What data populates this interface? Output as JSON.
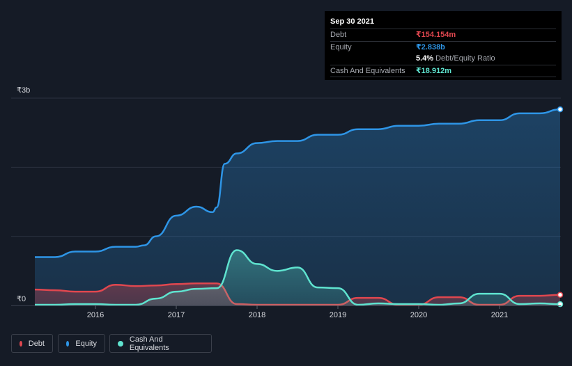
{
  "tooltip": {
    "date": "Sep 30 2021",
    "debt_label": "Debt",
    "debt_value": "₹154.154m",
    "equity_label": "Equity",
    "equity_value": "₹2.838b",
    "ratio_value": "5.4%",
    "ratio_label": "Debt/Equity Ratio",
    "cash_label": "Cash And Equivalents",
    "cash_value": "₹18.912m"
  },
  "legend": [
    {
      "label": "Debt",
      "color": "#e0474f"
    },
    {
      "label": "Equity",
      "color": "#2e95e6"
    },
    {
      "label": "Cash And Equivalents",
      "color": "#5fe3cf"
    }
  ],
  "colors": {
    "debt": "#e0474f",
    "equity": "#2e95e6",
    "cash": "#5fe3cf",
    "background": "#151b26",
    "grid": "#2b3240"
  },
  "chart_data": {
    "type": "area",
    "unit": "₹ billions",
    "ylim": [
      0,
      3
    ],
    "y_tick_labels": [
      {
        "value": 3,
        "label": "₹3b"
      },
      {
        "value": 0,
        "label": "₹0"
      }
    ],
    "x_ticks": [
      {
        "label": "2016",
        "x": 2016.0
      },
      {
        "label": "2017",
        "x": 2017.0
      },
      {
        "label": "2018",
        "x": 2018.0
      },
      {
        "label": "2019",
        "x": 2019.0
      },
      {
        "label": "2020",
        "x": 2020.0
      },
      {
        "label": "2021",
        "x": 2021.0
      }
    ],
    "xlim": [
      2014.9,
      2021.75
    ],
    "series": [
      {
        "name": "Equity",
        "key": "equity",
        "points": [
          [
            2015.25,
            0.7
          ],
          [
            2015.5,
            0.7
          ],
          [
            2015.75,
            0.78
          ],
          [
            2016.0,
            0.78
          ],
          [
            2016.25,
            0.85
          ],
          [
            2016.5,
            0.85
          ],
          [
            2016.6,
            0.87
          ],
          [
            2016.75,
            1.0
          ],
          [
            2017.0,
            1.3
          ],
          [
            2017.25,
            1.43
          ],
          [
            2017.45,
            1.35
          ],
          [
            2017.5,
            1.42
          ],
          [
            2017.6,
            2.05
          ],
          [
            2017.75,
            2.2
          ],
          [
            2018.0,
            2.35
          ],
          [
            2018.25,
            2.38
          ],
          [
            2018.5,
            2.38
          ],
          [
            2018.75,
            2.47
          ],
          [
            2019.0,
            2.47
          ],
          [
            2019.25,
            2.55
          ],
          [
            2019.5,
            2.55
          ],
          [
            2019.75,
            2.6
          ],
          [
            2020.0,
            2.6
          ],
          [
            2020.25,
            2.63
          ],
          [
            2020.5,
            2.63
          ],
          [
            2020.75,
            2.68
          ],
          [
            2021.0,
            2.68
          ],
          [
            2021.25,
            2.78
          ],
          [
            2021.5,
            2.78
          ],
          [
            2021.75,
            2.838
          ]
        ]
      },
      {
        "name": "Debt",
        "key": "debt",
        "points": [
          [
            2015.25,
            0.23
          ],
          [
            2015.5,
            0.22
          ],
          [
            2015.75,
            0.2
          ],
          [
            2016.0,
            0.2
          ],
          [
            2016.25,
            0.3
          ],
          [
            2016.5,
            0.28
          ],
          [
            2016.75,
            0.29
          ],
          [
            2017.0,
            0.31
          ],
          [
            2017.25,
            0.32
          ],
          [
            2017.5,
            0.32
          ],
          [
            2017.75,
            0.02
          ],
          [
            2018.0,
            0.01
          ],
          [
            2018.25,
            0.01
          ],
          [
            2018.5,
            0.01
          ],
          [
            2018.75,
            0.01
          ],
          [
            2019.0,
            0.01
          ],
          [
            2019.25,
            0.11
          ],
          [
            2019.5,
            0.11
          ],
          [
            2019.75,
            0.01
          ],
          [
            2020.0,
            0.01
          ],
          [
            2020.25,
            0.12
          ],
          [
            2020.5,
            0.12
          ],
          [
            2020.75,
            0.01
          ],
          [
            2021.0,
            0.01
          ],
          [
            2021.25,
            0.14
          ],
          [
            2021.5,
            0.14
          ],
          [
            2021.75,
            0.154
          ]
        ]
      },
      {
        "name": "Cash And Equivalents",
        "key": "cash",
        "points": [
          [
            2015.25,
            0.01
          ],
          [
            2015.5,
            0.01
          ],
          [
            2015.75,
            0.02
          ],
          [
            2016.0,
            0.02
          ],
          [
            2016.25,
            0.01
          ],
          [
            2016.5,
            0.01
          ],
          [
            2016.75,
            0.1
          ],
          [
            2017.0,
            0.2
          ],
          [
            2017.25,
            0.24
          ],
          [
            2017.5,
            0.25
          ],
          [
            2017.75,
            0.8
          ],
          [
            2018.0,
            0.6
          ],
          [
            2018.25,
            0.5
          ],
          [
            2018.5,
            0.55
          ],
          [
            2018.75,
            0.26
          ],
          [
            2019.0,
            0.25
          ],
          [
            2019.25,
            0.01
          ],
          [
            2019.5,
            0.03
          ],
          [
            2019.75,
            0.02
          ],
          [
            2020.0,
            0.02
          ],
          [
            2020.25,
            0.01
          ],
          [
            2020.5,
            0.03
          ],
          [
            2020.75,
            0.17
          ],
          [
            2021.0,
            0.17
          ],
          [
            2021.25,
            0.02
          ],
          [
            2021.5,
            0.03
          ],
          [
            2021.75,
            0.019
          ]
        ]
      }
    ]
  }
}
